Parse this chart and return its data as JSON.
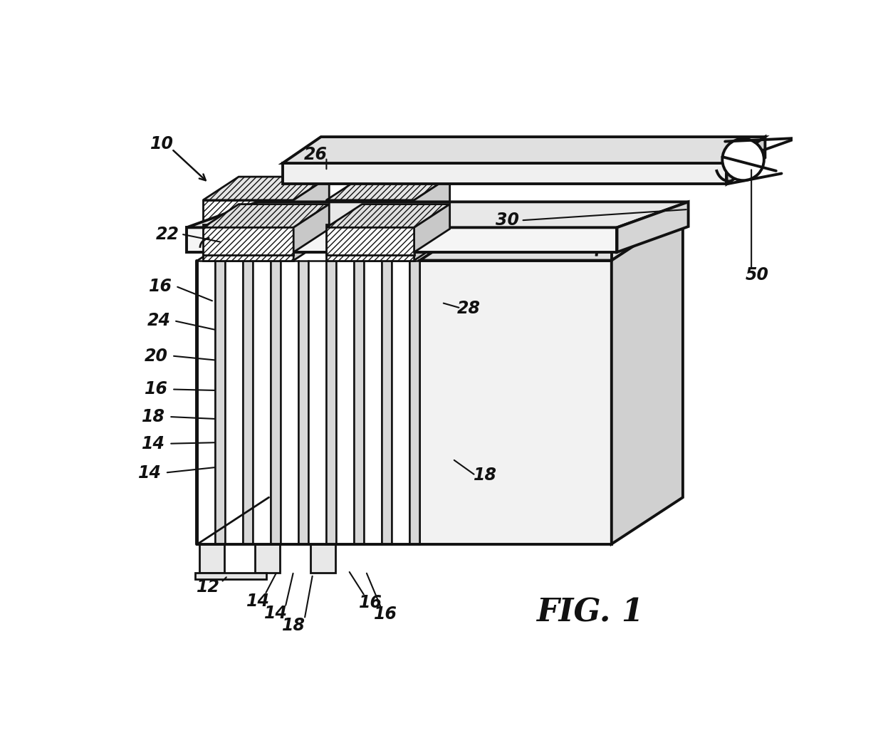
{
  "background_color": "#ffffff",
  "line_color": "#111111",
  "fig_width": 12.4,
  "fig_height": 10.57,
  "title": "FIG. 1",
  "title_fontsize": 32
}
